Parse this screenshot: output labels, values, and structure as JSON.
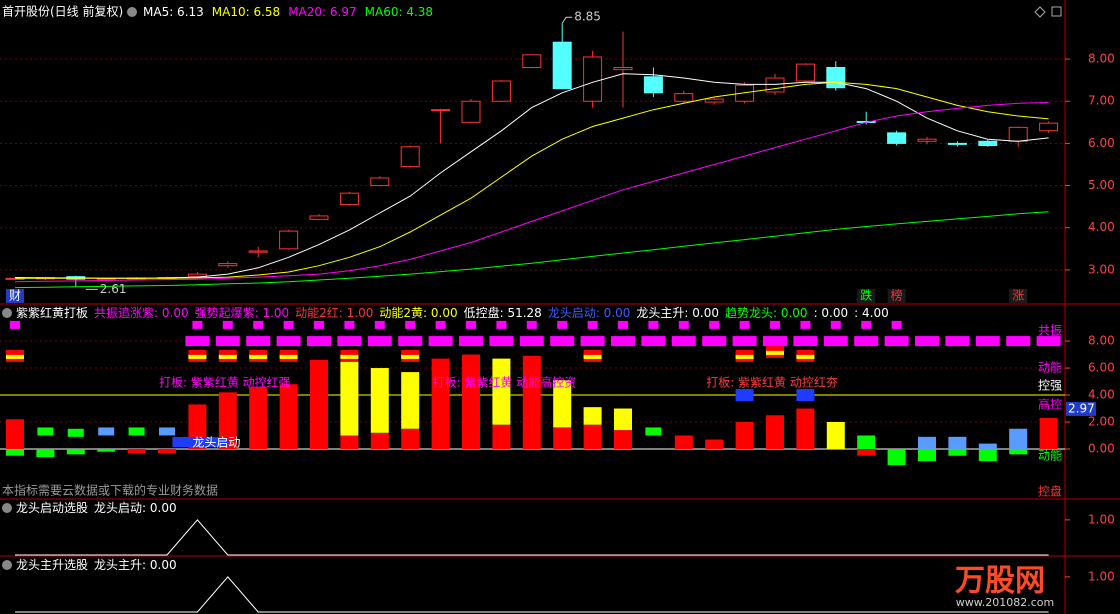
{
  "chart_data": [
    {
      "type": "candlestick",
      "title": "首开股份(日线 前复权)",
      "open": [
        2.78,
        2.79,
        2.84,
        2.78,
        2.8,
        2.81,
        2.84,
        3.1,
        3.42,
        3.5,
        4.2,
        4.55,
        5.0,
        5.45,
        6.8,
        6.5,
        7.0,
        7.8,
        8.4,
        7.0,
        7.75,
        7.58,
        7.0,
        6.98,
        7.0,
        7.22,
        7.48,
        7.8,
        6.52,
        6.25,
        6.05,
        6.0,
        6.05,
        6.05,
        6.3
      ],
      "high": [
        2.82,
        2.84,
        2.86,
        2.82,
        2.83,
        2.84,
        2.95,
        3.2,
        3.55,
        3.95,
        4.32,
        4.85,
        5.22,
        5.95,
        6.82,
        7.05,
        7.5,
        8.12,
        8.85,
        8.2,
        8.65,
        7.8,
        7.25,
        7.08,
        7.45,
        7.65,
        7.9,
        7.95,
        6.75,
        6.3,
        6.15,
        6.05,
        6.08,
        6.4,
        6.52
      ],
      "low": [
        2.76,
        2.76,
        2.61,
        2.75,
        2.77,
        2.78,
        2.82,
        3.05,
        3.3,
        3.48,
        4.18,
        4.52,
        4.98,
        5.42,
        6.0,
        6.48,
        6.98,
        7.78,
        7.28,
        6.85,
        6.85,
        7.1,
        6.95,
        6.92,
        6.95,
        7.15,
        7.45,
        7.25,
        6.45,
        5.95,
        5.98,
        5.93,
        5.92,
        5.92,
        6.25
      ],
      "close": [
        2.8,
        2.82,
        2.78,
        2.8,
        2.81,
        2.82,
        2.9,
        3.15,
        3.45,
        3.92,
        4.28,
        4.82,
        5.18,
        5.92,
        6.8,
        7.0,
        7.48,
        8.1,
        7.3,
        8.05,
        7.8,
        7.2,
        7.18,
        7.05,
        7.38,
        7.55,
        7.88,
        7.32,
        6.5,
        6.0,
        6.1,
        5.98,
        5.95,
        6.38,
        6.48
      ],
      "up_color": "#ff3232",
      "down_color": "#54ffff",
      "high_label": "8.85",
      "low_label": "2.61",
      "series": [
        {
          "name": "MA5: 6.13",
          "color": "#ffffff",
          "values": [
            2.82,
            2.81,
            2.81,
            2.8,
            2.8,
            2.81,
            2.83,
            2.9,
            3.05,
            3.3,
            3.6,
            3.95,
            4.35,
            4.75,
            5.3,
            5.8,
            6.3,
            6.85,
            7.2,
            7.45,
            7.65,
            7.63,
            7.55,
            7.45,
            7.4,
            7.4,
            7.45,
            7.45,
            7.3,
            7.0,
            6.6,
            6.3,
            6.1,
            6.05,
            6.13
          ]
        },
        {
          "name": "MA10: 6.58",
          "color": "#ffff00",
          "values": [
            2.8,
            2.8,
            2.8,
            2.8,
            2.8,
            2.8,
            2.81,
            2.83,
            2.88,
            2.95,
            3.1,
            3.3,
            3.55,
            3.9,
            4.3,
            4.7,
            5.2,
            5.7,
            6.1,
            6.4,
            6.6,
            6.8,
            6.95,
            7.1,
            7.2,
            7.3,
            7.4,
            7.45,
            7.4,
            7.3,
            7.1,
            6.9,
            6.75,
            6.65,
            6.58
          ]
        },
        {
          "name": "MA20: 6.97",
          "color": "#ff00ff",
          "values": [
            2.72,
            2.73,
            2.74,
            2.75,
            2.76,
            2.77,
            2.78,
            2.8,
            2.83,
            2.86,
            2.9,
            2.98,
            3.1,
            3.25,
            3.45,
            3.65,
            3.9,
            4.15,
            4.4,
            4.65,
            4.9,
            5.1,
            5.3,
            5.5,
            5.7,
            5.9,
            6.1,
            6.3,
            6.5,
            6.65,
            6.75,
            6.83,
            6.9,
            6.95,
            6.97
          ]
        },
        {
          "name": "MA60: 4.38",
          "color": "#00ff00",
          "values": [
            2.58,
            2.59,
            2.6,
            2.61,
            2.62,
            2.63,
            2.65,
            2.67,
            2.69,
            2.72,
            2.76,
            2.8,
            2.85,
            2.9,
            2.96,
            3.02,
            3.09,
            3.16,
            3.24,
            3.32,
            3.4,
            3.48,
            3.56,
            3.64,
            3.72,
            3.8,
            3.88,
            3.96,
            4.03,
            4.09,
            4.15,
            4.21,
            4.27,
            4.33,
            4.38
          ]
        }
      ],
      "event_markers": [
        {
          "text": "财",
          "color": "#ffffff",
          "background": "#1e3cc8"
        },
        null,
        null,
        null,
        null,
        null,
        null,
        null,
        null,
        null,
        null,
        null,
        null,
        null,
        null,
        null,
        null,
        null,
        null,
        null,
        null,
        null,
        null,
        null,
        null,
        null,
        null,
        null,
        {
          "text": "跌",
          "color": "#00ff00",
          "background": "#1a1a1a"
        },
        {
          "text": "榜",
          "color": "#ff3232",
          "background": "#1a1a1a"
        },
        null,
        null,
        null,
        {
          "text": "涨",
          "color": "#ff3232",
          "background": "#1a1a1a"
        },
        null
      ],
      "ylim": [
        2.5,
        8.95
      ],
      "yticks": [
        {
          "value": 3,
          "label": "3.00"
        },
        {
          "value": 4,
          "label": "4.00"
        },
        {
          "value": 5,
          "label": "5.00"
        },
        {
          "value": 6,
          "label": "6.00"
        },
        {
          "value": 7,
          "label": "7.00"
        },
        {
          "value": 8,
          "label": "8.00"
        }
      ],
      "grid": true,
      "axis_color": "#ff4040"
    },
    {
      "type": "indicator",
      "title_items": [
        {
          "text": "紫紫红黄打板",
          "color": "#ffffff"
        },
        {
          "text": "共振追涨紫: 0.00",
          "color": "#ff00ff"
        },
        {
          "text": "强势起爆紫: 1.00",
          "color": "#ff00ff"
        },
        {
          "text": "动能2红: 1.00",
          "color": "#ff3232"
        },
        {
          "text": "动能2黄: 0.00",
          "color": "#ffff00"
        },
        {
          "text": "低控盘: 51.28",
          "color": "#ffffff"
        },
        {
          "text": "龙头启动: 0.00",
          "color": "#3c5aff"
        },
        {
          "text": "龙头主升: 0.00",
          "color": "#ffffff"
        },
        {
          "text": "趋势龙头: 0.00",
          "color": "#00ff00"
        },
        {
          "text": ": 0.00",
          "color": "#ffffff"
        },
        {
          "text": ": 4.00",
          "color": "#ffffff"
        }
      ],
      "series": [
        {
          "style": "column",
          "color": "#ff0000",
          "values": [
            2.2,
            null,
            null,
            null,
            null,
            null,
            3.3,
            4.2,
            4.6,
            4.8,
            6.6,
            1.0,
            1.2,
            1.5,
            6.7,
            7.0,
            1.8,
            6.9,
            1.6,
            1.8,
            1.4,
            null,
            1.0,
            0.7,
            2.0,
            2.5,
            3.0,
            null,
            null,
            null,
            null,
            null,
            null,
            null,
            2.3
          ]
        },
        {
          "style": "stack",
          "color": "#ffff00",
          "values": [
            null,
            null,
            null,
            null,
            null,
            null,
            null,
            null,
            null,
            null,
            null,
            5.5,
            4.8,
            4.2,
            null,
            null,
            4.9,
            null,
            3.5,
            1.3,
            1.6,
            null,
            null,
            null,
            null,
            null,
            null,
            2.0,
            null,
            null,
            null,
            null,
            null,
            null,
            null
          ]
        },
        {
          "style": "column",
          "color": "#00ff00",
          "values": [
            -0.5,
            -0.6,
            -0.4,
            -0.2,
            null,
            null,
            null,
            null,
            null,
            null,
            null,
            null,
            null,
            null,
            null,
            null,
            null,
            null,
            null,
            null,
            null,
            null,
            null,
            null,
            null,
            null,
            null,
            null,
            1.0,
            -1.2,
            -0.9,
            -0.5,
            -0.9,
            -0.4,
            null
          ]
        },
        {
          "style": "column",
          "color": "#5a9bff",
          "values": [
            null,
            null,
            null,
            null,
            null,
            null,
            null,
            null,
            null,
            null,
            null,
            null,
            null,
            null,
            null,
            null,
            null,
            null,
            null,
            null,
            null,
            null,
            null,
            null,
            null,
            null,
            null,
            null,
            null,
            null,
            0.9,
            0.9,
            0.4,
            1.5,
            null
          ]
        },
        {
          "style": "column",
          "color": "#ff0000",
          "values": [
            null,
            null,
            null,
            null,
            -0.3,
            -0.3,
            null,
            null,
            null,
            null,
            null,
            null,
            null,
            null,
            null,
            null,
            null,
            null,
            null,
            null,
            null,
            null,
            null,
            null,
            null,
            null,
            null,
            null,
            -0.5,
            null,
            null,
            null,
            null,
            null,
            null
          ]
        },
        {
          "style": "marker",
          "color": "#00ff00",
          "values": [
            null,
            1.3,
            1.2,
            null,
            1.3,
            null,
            null,
            null,
            null,
            null,
            null,
            null,
            null,
            null,
            null,
            null,
            null,
            null,
            null,
            null,
            null,
            1.3,
            null,
            null,
            null,
            null,
            null,
            null,
            null,
            null,
            null,
            null,
            null,
            null,
            null
          ]
        },
        {
          "style": "marker",
          "color": "#5a9bff",
          "values": [
            null,
            null,
            null,
            1.3,
            null,
            1.3,
            null,
            null,
            null,
            null,
            null,
            null,
            null,
            null,
            null,
            null,
            null,
            null,
            null,
            null,
            null,
            null,
            null,
            null,
            null,
            null,
            null,
            null,
            null,
            null,
            null,
            null,
            null,
            null,
            null
          ]
        },
        {
          "style": "warning",
          "color": "#ff0000",
          "color2": "#ffff00",
          "values": [
            6.9,
            null,
            null,
            null,
            null,
            null,
            6.9,
            6.9,
            6.9,
            6.9,
            null,
            6.9,
            null,
            6.9,
            null,
            null,
            null,
            null,
            null,
            6.9,
            null,
            null,
            null,
            null,
            6.9,
            7.2,
            6.9,
            null,
            null,
            null,
            null,
            null,
            null,
            null,
            null
          ]
        },
        {
          "style": "block",
          "color": "#ff00ff",
          "values": [
            null,
            null,
            null,
            null,
            null,
            null,
            8.0,
            8.0,
            8.0,
            8.0,
            8.0,
            8.0,
            8.0,
            8.0,
            8.0,
            8.0,
            8.0,
            8.0,
            8.0,
            8.0,
            8.0,
            8.0,
            8.0,
            8.0,
            8.0,
            8.0,
            8.0,
            8.0,
            8.0,
            8.0,
            8.0,
            8.0,
            8.0,
            8.0,
            8.0
          ]
        },
        {
          "style": "square",
          "color": "#ff00ff",
          "values": [
            9.2,
            null,
            null,
            null,
            null,
            null,
            9.2,
            9.2,
            9.2,
            9.2,
            9.2,
            9.2,
            9.2,
            9.2,
            9.2,
            9.2,
            9.2,
            9.2,
            9.2,
            9.2,
            9.2,
            9.2,
            9.2,
            9.2,
            9.2,
            9.2,
            9.2,
            9.2,
            9.2,
            9.2,
            null,
            null,
            null,
            null,
            null
          ]
        },
        {
          "style": "flag",
          "color": "#1e3cff",
          "values": [
            null,
            null,
            null,
            null,
            null,
            null,
            null,
            null,
            null,
            null,
            null,
            null,
            null,
            null,
            null,
            null,
            null,
            null,
            null,
            null,
            null,
            null,
            null,
            null,
            4.0,
            null,
            4.0,
            null,
            null,
            null,
            null,
            null,
            null,
            null,
            null
          ]
        }
      ],
      "ref_line": {
        "value": 4.0,
        "color": "#ffff00"
      },
      "current_value": 2.97,
      "signals": [
        {
          "index": 5,
          "text": "打板: 紫紫红黄 动控红强",
          "color": "#ff00ff"
        },
        {
          "index": 14,
          "text": "打板: 紫紫红黄 动能高控资",
          "color": "#ff00ff"
        },
        {
          "index": 23,
          "text": "打板: 紫紫红黄 动控红夯",
          "color": "#ff3c3c"
        }
      ],
      "tag": {
        "index": 6,
        "text": "龙头启动",
        "color": "#ffffff",
        "background": "#1e3cff"
      },
      "side_labels": [
        {
          "text": "共振",
          "color": "#ff00ff"
        },
        {
          "text": "动能",
          "color": "#ff00ff"
        },
        {
          "text": "控强",
          "color": "#ffffff"
        },
        {
          "text": "高控",
          "color": "#ff00ff"
        },
        {
          "text": "动能",
          "color": "#00ff00"
        },
        {
          "text": "控盘",
          "color": "#ff3232"
        }
      ],
      "note": "本指标需要云数据或下载的专业财务数据",
      "ylim": [
        -3.56,
        10.6
      ],
      "yticks": [
        {
          "value": 0,
          "label": "0.00"
        },
        {
          "value": 2,
          "label": "2.00"
        },
        {
          "value": 4,
          "label": "4.00"
        },
        {
          "value": 6,
          "label": "6.00"
        },
        {
          "value": 8,
          "label": "8.00"
        }
      ],
      "grid": true,
      "axis_color": "#ff4040"
    },
    {
      "type": "line",
      "title_items": [
        {
          "text": "龙头启动选股",
          "color": "#ffffff"
        },
        {
          "text": "龙头启动: 0.00",
          "color": "#ffffff"
        }
      ],
      "series": [
        {
          "color": "#ffffff",
          "values": [
            0,
            0,
            0,
            0,
            0,
            0,
            1,
            0,
            0,
            0,
            0,
            0,
            0,
            0,
            0,
            0,
            0,
            0,
            0,
            0,
            0,
            0,
            0,
            0,
            0,
            0,
            0,
            0,
            0,
            0,
            0,
            0,
            0,
            0,
            0
          ]
        }
      ],
      "ylim": [
        0,
        1.11
      ],
      "yticks": [
        {
          "value": 1,
          "label": "1.00"
        }
      ],
      "axis_color": "#ff4040"
    },
    {
      "type": "line",
      "title_items": [
        {
          "text": "龙头主升选股",
          "color": "#ffffff"
        },
        {
          "text": "龙头主升: 0.00",
          "color": "#ffffff"
        }
      ],
      "series": [
        {
          "color": "#ffffff",
          "values": [
            0,
            0,
            0,
            0,
            0,
            0,
            0,
            1,
            0,
            0,
            0,
            0,
            0,
            0,
            0,
            0,
            0,
            0,
            0,
            0,
            0,
            0,
            0,
            0,
            0,
            0,
            0,
            0,
            0,
            0,
            0,
            0,
            0,
            0,
            0
          ]
        }
      ],
      "ylim": [
        0,
        1.11
      ],
      "yticks": [
        {
          "value": 1,
          "label": "1.00"
        }
      ],
      "axis_color": "#ff4040"
    }
  ],
  "watermark": {
    "brand": "万股网",
    "url": "www.201082.com"
  }
}
